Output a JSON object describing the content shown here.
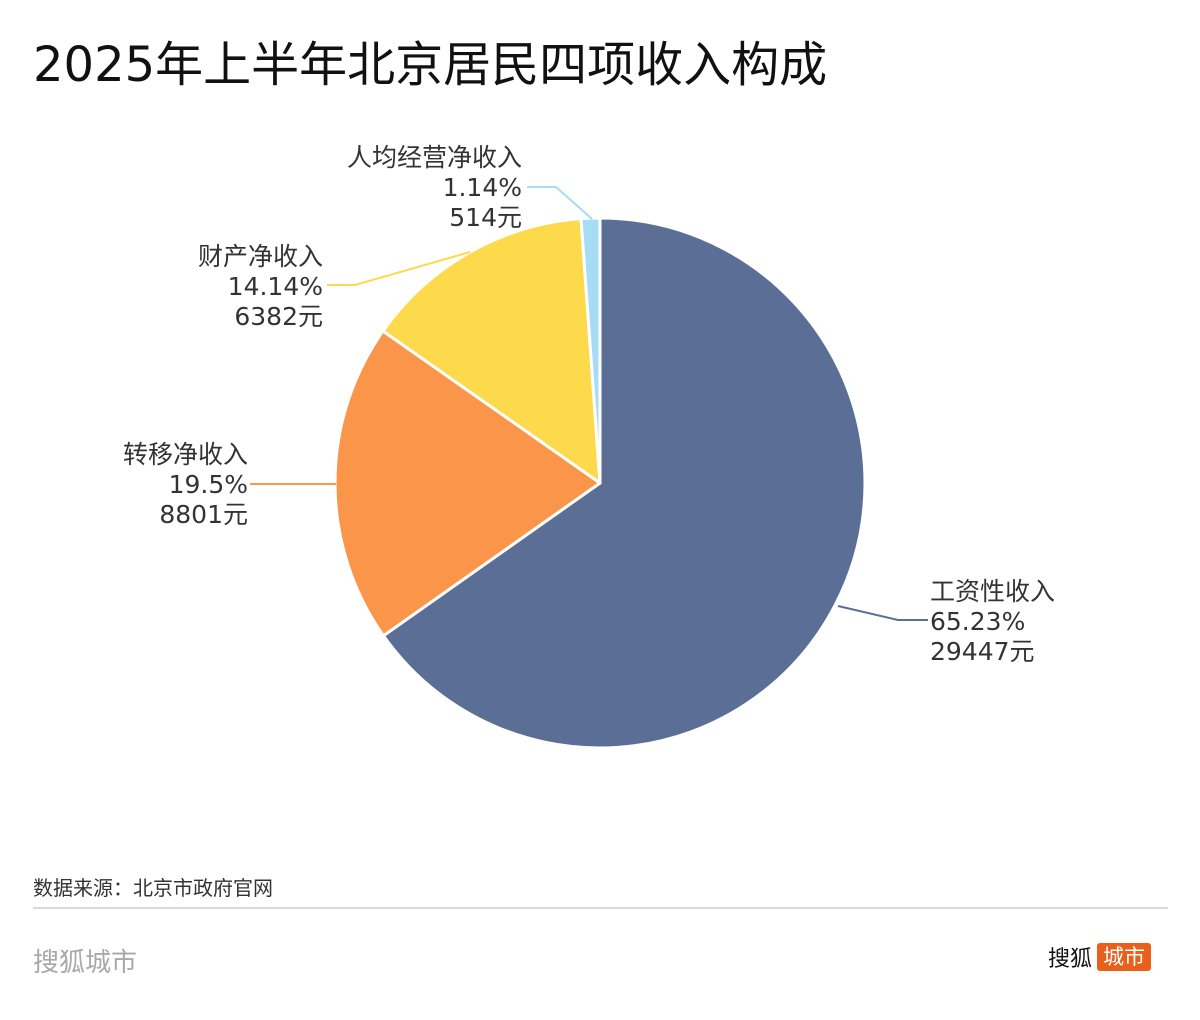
{
  "title": "2025年上半年北京居民四项收入构成",
  "source": "数据来源：北京市政府官网",
  "brand": {
    "left_text": "搜狐城市",
    "logo_text": "搜狐",
    "logo_badge": "城市",
    "badge_color": "#e8601c"
  },
  "labels": {
    "wage": {
      "name": "工资性收入",
      "pct": "65.23%",
      "amount": "29447元"
    },
    "transfer": {
      "name": "转移净收入",
      "pct": "19.5%",
      "amount": "8801元"
    },
    "property": {
      "name": "财产净收入",
      "pct": "14.14%",
      "amount": "6382元"
    },
    "business": {
      "name": "人均经营净收入",
      "pct": "1.14%",
      "amount": "514元"
    }
  },
  "chart_data": {
    "type": "pie",
    "title": "2025年上半年北京居民四项收入构成",
    "start_angle": "12 o'clock, clockwise",
    "slices": [
      {
        "label": "工资性收入",
        "percent": 65.23,
        "value": 29447,
        "unit": "元",
        "color": "#5b6e96"
      },
      {
        "label": "转移净收入",
        "percent": 19.5,
        "value": 8801,
        "unit": "元",
        "color": "#fb954a"
      },
      {
        "label": "财产净收入",
        "percent": 14.14,
        "value": 6382,
        "unit": "元",
        "color": "#fdd94c"
      },
      {
        "label": "人均经营净收入",
        "percent": 1.14,
        "value": 514,
        "unit": "元",
        "color": "#a6dcf6"
      }
    ],
    "legend": "none (outside labels with leader lines)",
    "source": "数据来源：北京市政府官网"
  }
}
